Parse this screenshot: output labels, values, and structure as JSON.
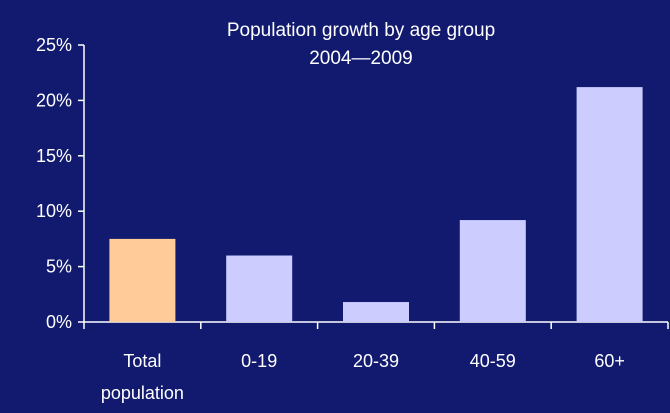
{
  "chart_data": {
    "type": "bar",
    "title": "Population growth by age group",
    "subtitle": "2004—2009",
    "categories": [
      "Total population",
      "0-19",
      "20-39",
      "40-59",
      "60+"
    ],
    "category_lines": [
      [
        "Total",
        "population"
      ],
      [
        "0-19"
      ],
      [
        "20-39"
      ],
      [
        "40-59"
      ],
      [
        "60+"
      ]
    ],
    "values": [
      7.5,
      6.0,
      1.8,
      9.2,
      21.2
    ],
    "value_unit": "%",
    "ylim": [
      0,
      25
    ],
    "yticks": [
      0,
      5,
      10,
      15,
      20,
      25
    ],
    "ytick_labels": [
      "0%",
      "5%",
      "10%",
      "15%",
      "20%",
      "25%"
    ],
    "xlabel": "",
    "ylabel": "",
    "grid": false,
    "legend": "none",
    "colors": {
      "background": "#111a6e",
      "highlight_bar": "#ffcc99",
      "bar": "#ccccff",
      "axis": "#ffffff",
      "text": "#ffffff"
    },
    "highlight_index": 0
  }
}
